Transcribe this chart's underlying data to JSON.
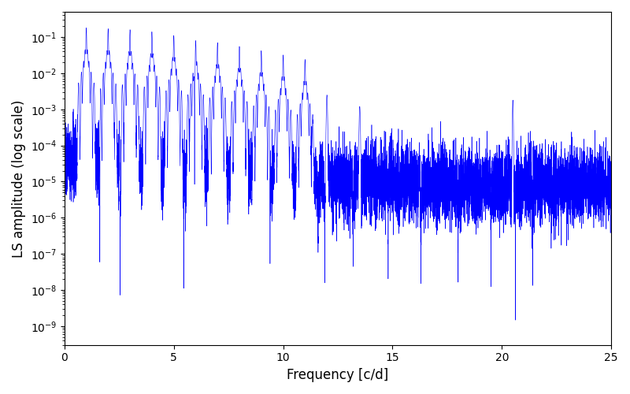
{
  "xlabel": "Frequency [c/d]",
  "ylabel": "LS amplitude (log scale)",
  "line_color": "#0000ff",
  "xlim": [
    0,
    25
  ],
  "ylim_min": 3e-10,
  "ylim_max": 0.5,
  "freq_max": 25.0,
  "n_points": 10000,
  "background_color": "#ffffff",
  "figsize": [
    8.0,
    5.0
  ],
  "dpi": 100,
  "seed": 137
}
